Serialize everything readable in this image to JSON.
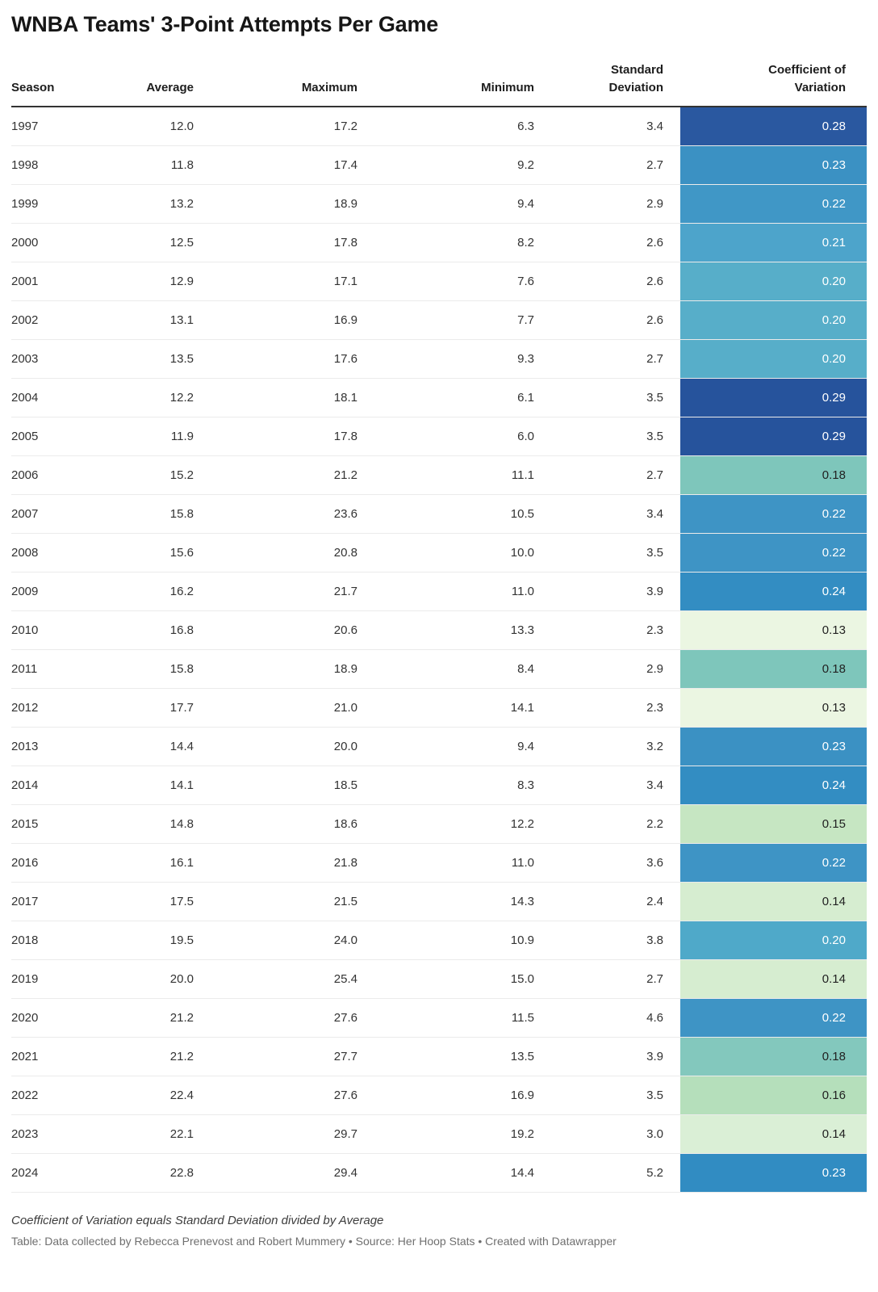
{
  "title": "WNBA Teams' 3-Point Attempts Per Game",
  "table": {
    "headers": {
      "season": "Season",
      "average": "Average",
      "maximum": "Maximum",
      "minimum": "Minimum",
      "std_dev": "Standard Deviation",
      "cov": "Coefficient of Variation"
    },
    "rows": [
      {
        "season": "1997",
        "average": "12.0",
        "maximum": "17.2",
        "minimum": "6.3",
        "std_dev": "3.4",
        "cov": "0.28",
        "cov_bg": "#2a58a0",
        "cov_text": "#ffffff"
      },
      {
        "season": "1998",
        "average": "11.8",
        "maximum": "17.4",
        "minimum": "9.2",
        "std_dev": "2.7",
        "cov": "0.23",
        "cov_bg": "#3b91c3",
        "cov_text": "#ffffff"
      },
      {
        "season": "1999",
        "average": "13.2",
        "maximum": "18.9",
        "minimum": "9.4",
        "std_dev": "2.9",
        "cov": "0.22",
        "cov_bg": "#4097c6",
        "cov_text": "#ffffff"
      },
      {
        "season": "2000",
        "average": "12.5",
        "maximum": "17.8",
        "minimum": "8.2",
        "std_dev": "2.6",
        "cov": "0.21",
        "cov_bg": "#4da4cb",
        "cov_text": "#ffffff"
      },
      {
        "season": "2001",
        "average": "12.9",
        "maximum": "17.1",
        "minimum": "7.6",
        "std_dev": "2.6",
        "cov": "0.20",
        "cov_bg": "#57aec9",
        "cov_text": "#ffffff"
      },
      {
        "season": "2002",
        "average": "13.1",
        "maximum": "16.9",
        "minimum": "7.7",
        "std_dev": "2.6",
        "cov": "0.20",
        "cov_bg": "#57aec9",
        "cov_text": "#ffffff"
      },
      {
        "season": "2003",
        "average": "13.5",
        "maximum": "17.6",
        "minimum": "9.3",
        "std_dev": "2.7",
        "cov": "0.20",
        "cov_bg": "#57aec9",
        "cov_text": "#ffffff"
      },
      {
        "season": "2004",
        "average": "12.2",
        "maximum": "18.1",
        "minimum": "6.1",
        "std_dev": "3.5",
        "cov": "0.29",
        "cov_bg": "#26539c",
        "cov_text": "#ffffff"
      },
      {
        "season": "2005",
        "average": "11.9",
        "maximum": "17.8",
        "minimum": "6.0",
        "std_dev": "3.5",
        "cov": "0.29",
        "cov_bg": "#26539c",
        "cov_text": "#ffffff"
      },
      {
        "season": "2006",
        "average": "15.2",
        "maximum": "21.2",
        "minimum": "11.1",
        "std_dev": "2.7",
        "cov": "0.18",
        "cov_bg": "#7ec6bb",
        "cov_text": "#222222"
      },
      {
        "season": "2007",
        "average": "15.8",
        "maximum": "23.6",
        "minimum": "10.5",
        "std_dev": "3.4",
        "cov": "0.22",
        "cov_bg": "#3e94c5",
        "cov_text": "#ffffff"
      },
      {
        "season": "2008",
        "average": "15.6",
        "maximum": "20.8",
        "minimum": "10.0",
        "std_dev": "3.5",
        "cov": "0.22",
        "cov_bg": "#3e94c5",
        "cov_text": "#ffffff"
      },
      {
        "season": "2009",
        "average": "16.2",
        "maximum": "21.7",
        "minimum": "11.0",
        "std_dev": "3.9",
        "cov": "0.24",
        "cov_bg": "#338dc2",
        "cov_text": "#ffffff"
      },
      {
        "season": "2010",
        "average": "16.8",
        "maximum": "20.6",
        "minimum": "13.3",
        "std_dev": "2.3",
        "cov": "0.13",
        "cov_bg": "#ebf6e2",
        "cov_text": "#222222"
      },
      {
        "season": "2011",
        "average": "15.8",
        "maximum": "18.9",
        "minimum": "8.4",
        "std_dev": "2.9",
        "cov": "0.18",
        "cov_bg": "#7ec6bb",
        "cov_text": "#222222"
      },
      {
        "season": "2012",
        "average": "17.7",
        "maximum": "21.0",
        "minimum": "14.1",
        "std_dev": "2.3",
        "cov": "0.13",
        "cov_bg": "#ebf6e2",
        "cov_text": "#222222"
      },
      {
        "season": "2013",
        "average": "14.4",
        "maximum": "20.0",
        "minimum": "9.4",
        "std_dev": "3.2",
        "cov": "0.23",
        "cov_bg": "#3b91c3",
        "cov_text": "#ffffff"
      },
      {
        "season": "2014",
        "average": "14.1",
        "maximum": "18.5",
        "minimum": "8.3",
        "std_dev": "3.4",
        "cov": "0.24",
        "cov_bg": "#338dc2",
        "cov_text": "#ffffff"
      },
      {
        "season": "2015",
        "average": "14.8",
        "maximum": "18.6",
        "minimum": "12.2",
        "std_dev": "2.2",
        "cov": "0.15",
        "cov_bg": "#c6e6c2",
        "cov_text": "#222222"
      },
      {
        "season": "2016",
        "average": "16.1",
        "maximum": "21.8",
        "minimum": "11.0",
        "std_dev": "3.6",
        "cov": "0.22",
        "cov_bg": "#3e94c5",
        "cov_text": "#ffffff"
      },
      {
        "season": "2017",
        "average": "17.5",
        "maximum": "21.5",
        "minimum": "14.3",
        "std_dev": "2.4",
        "cov": "0.14",
        "cov_bg": "#d6edd0",
        "cov_text": "#222222"
      },
      {
        "season": "2018",
        "average": "19.5",
        "maximum": "24.0",
        "minimum": "10.9",
        "std_dev": "3.8",
        "cov": "0.20",
        "cov_bg": "#4fa9c9",
        "cov_text": "#ffffff"
      },
      {
        "season": "2019",
        "average": "20.0",
        "maximum": "25.4",
        "minimum": "15.0",
        "std_dev": "2.7",
        "cov": "0.14",
        "cov_bg": "#d6edd0",
        "cov_text": "#222222"
      },
      {
        "season": "2020",
        "average": "21.2",
        "maximum": "27.6",
        "minimum": "11.5",
        "std_dev": "4.6",
        "cov": "0.22",
        "cov_bg": "#3e94c5",
        "cov_text": "#ffffff"
      },
      {
        "season": "2021",
        "average": "21.2",
        "maximum": "27.7",
        "minimum": "13.5",
        "std_dev": "3.9",
        "cov": "0.18",
        "cov_bg": "#83c8bd",
        "cov_text": "#222222"
      },
      {
        "season": "2022",
        "average": "22.4",
        "maximum": "27.6",
        "minimum": "16.9",
        "std_dev": "3.5",
        "cov": "0.16",
        "cov_bg": "#b5dfbb",
        "cov_text": "#222222"
      },
      {
        "season": "2023",
        "average": "22.1",
        "maximum": "29.7",
        "minimum": "19.2",
        "std_dev": "3.0",
        "cov": "0.14",
        "cov_bg": "#daefd6",
        "cov_text": "#222222"
      },
      {
        "season": "2024",
        "average": "22.8",
        "maximum": "29.4",
        "minimum": "14.4",
        "std_dev": "5.2",
        "cov": "0.23",
        "cov_bg": "#318cc2",
        "cov_text": "#ffffff"
      }
    ]
  },
  "footnote": "Coefficient of Variation equals Standard Deviation divided by Average",
  "credit": "Table: Data collected by Rebecca Prenevost and Robert Mummery • Source: Her Hoop Stats • Created with Datawrapper",
  "chart_data": {
    "type": "table",
    "title": "WNBA Teams' 3-Point Attempts Per Game",
    "columns": [
      "Season",
      "Average",
      "Maximum",
      "Minimum",
      "Standard Deviation",
      "Coefficient of Variation"
    ],
    "categories": [
      "1997",
      "1998",
      "1999",
      "2000",
      "2001",
      "2002",
      "2003",
      "2004",
      "2005",
      "2006",
      "2007",
      "2008",
      "2009",
      "2010",
      "2011",
      "2012",
      "2013",
      "2014",
      "2015",
      "2016",
      "2017",
      "2018",
      "2019",
      "2020",
      "2021",
      "2022",
      "2023",
      "2024"
    ],
    "series": [
      {
        "name": "Average",
        "values": [
          12.0,
          11.8,
          13.2,
          12.5,
          12.9,
          13.1,
          13.5,
          12.2,
          11.9,
          15.2,
          15.8,
          15.6,
          16.2,
          16.8,
          15.8,
          17.7,
          14.4,
          14.1,
          14.8,
          16.1,
          17.5,
          19.5,
          20.0,
          21.2,
          21.2,
          22.4,
          22.1,
          22.8
        ]
      },
      {
        "name": "Maximum",
        "values": [
          17.2,
          17.4,
          18.9,
          17.8,
          17.1,
          16.9,
          17.6,
          18.1,
          17.8,
          21.2,
          23.6,
          20.8,
          21.7,
          20.6,
          18.9,
          21.0,
          20.0,
          18.5,
          18.6,
          21.8,
          21.5,
          24.0,
          25.4,
          27.6,
          27.7,
          27.6,
          29.7,
          29.4
        ]
      },
      {
        "name": "Minimum",
        "values": [
          6.3,
          9.2,
          9.4,
          8.2,
          7.6,
          7.7,
          9.3,
          6.1,
          6.0,
          11.1,
          10.5,
          10.0,
          11.0,
          13.3,
          8.4,
          14.1,
          9.4,
          8.3,
          12.2,
          11.0,
          14.3,
          10.9,
          15.0,
          11.5,
          13.5,
          16.9,
          19.2,
          14.4
        ]
      },
      {
        "name": "Standard Deviation",
        "values": [
          3.4,
          2.7,
          2.9,
          2.6,
          2.6,
          2.6,
          2.7,
          3.5,
          3.5,
          2.7,
          3.4,
          3.5,
          3.9,
          2.3,
          2.9,
          2.3,
          3.2,
          3.4,
          2.2,
          3.6,
          2.4,
          3.8,
          2.7,
          4.6,
          3.9,
          3.5,
          3.0,
          5.2
        ]
      },
      {
        "name": "Coefficient of Variation",
        "values": [
          0.28,
          0.23,
          0.22,
          0.21,
          0.2,
          0.2,
          0.2,
          0.29,
          0.29,
          0.18,
          0.22,
          0.22,
          0.24,
          0.13,
          0.18,
          0.13,
          0.23,
          0.24,
          0.15,
          0.22,
          0.14,
          0.2,
          0.14,
          0.22,
          0.18,
          0.16,
          0.14,
          0.23
        ]
      }
    ],
    "heatmap_column": "Coefficient of Variation",
    "heatmap_palette": {
      "high": "#26539c",
      "mid": "#7ec6bb",
      "low": "#ebf6e2"
    },
    "layout": {
      "numeric_columns_align": "right",
      "grid": "horizontal-row-dividers",
      "legend": "none"
    }
  }
}
